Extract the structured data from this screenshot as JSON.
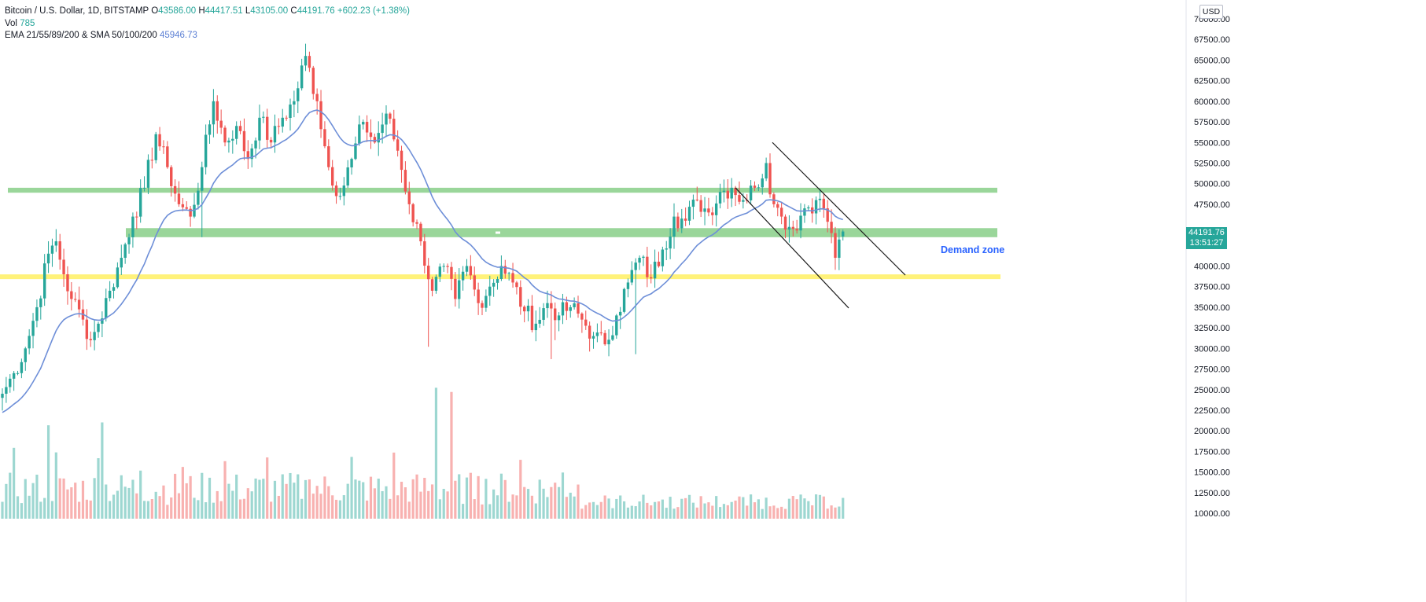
{
  "legend": {
    "symbol": "Bitcoin / U.S. Dollar, 1D, BITSTAMP",
    "open_label": "O",
    "open": "43586.00",
    "high_label": "H",
    "high": "44417.51",
    "low_label": "L",
    "low": "43105.00",
    "close_label": "C",
    "close": "44191.76",
    "change": "+602.23 (+1.38%)",
    "vol_label": "Vol",
    "vol": "785",
    "ema_label": "EMA 21/55/89/200 & SMA 50/100/200",
    "ema": "45946.73"
  },
  "axis": {
    "currency": "USD",
    "price_ticks": [
      "70000.00",
      "67500.00",
      "65000.00",
      "62500.00",
      "60000.00",
      "57500.00",
      "55000.00",
      "52500.00",
      "50000.00",
      "47500.00",
      "45000.00",
      "42500.00",
      "40000.00",
      "37500.00",
      "35000.00",
      "32500.00",
      "30000.00",
      "27500.00",
      "25000.00",
      "22500.00",
      "20000.00",
      "17500.00",
      "15000.00",
      "12500.00",
      "10000.00"
    ],
    "tick_values": [
      70000,
      67500,
      65000,
      62500,
      60000,
      57500,
      55000,
      52500,
      50000,
      47500,
      45000,
      42500,
      40000,
      37500,
      35000,
      32500,
      30000,
      27500,
      25000,
      22500,
      20000,
      17500,
      15000,
      12500,
      10000
    ]
  },
  "last_price": {
    "price": "44191.76",
    "countdown": "13:51:27",
    "color": "#26a69a"
  },
  "annotation": {
    "text": "Demand zone",
    "color": "#2962ff"
  },
  "colors": {
    "up": "#26a69a",
    "down": "#ef5350",
    "ema": "#6e8fd8",
    "zone": "#8fd18f",
    "support": "#fff27a",
    "channel": "#1a1a1a"
  },
  "chart_data": {
    "type": "candlestick",
    "ylim": [
      10000,
      70000
    ],
    "zones": [
      {
        "low": 48900,
        "high": 49500
      },
      {
        "low": 43500,
        "high": 44600
      }
    ],
    "support_line": 38700,
    "channel_lines": [
      [
        [
          40,
          55000
        ],
        [
          72,
          38900
        ]
      ],
      [
        [
          37,
          49500
        ],
        [
          69,
          34900
        ]
      ]
    ],
    "anchors": [
      [
        0,
        24500
      ],
      [
        3,
        27000
      ],
      [
        6,
        30000
      ],
      [
        9,
        35000
      ],
      [
        12,
        41500
      ],
      [
        14,
        43000
      ],
      [
        16,
        39000
      ],
      [
        18,
        36000
      ],
      [
        21,
        33500
      ],
      [
        23,
        31000
      ],
      [
        25,
        33000
      ],
      [
        28,
        37000
      ],
      [
        31,
        41000
      ],
      [
        34,
        46000
      ],
      [
        37,
        49500
      ],
      [
        40,
        56000
      ],
      [
        43,
        52000
      ],
      [
        46,
        47500
      ],
      [
        49,
        46000
      ],
      [
        52,
        52000
      ],
      [
        55,
        60000
      ],
      [
        58,
        55000
      ],
      [
        61,
        57000
      ],
      [
        64,
        53000
      ],
      [
        67,
        58000
      ],
      [
        70,
        55000
      ],
      [
        73,
        58000
      ],
      [
        76,
        60000
      ],
      [
        79,
        65500
      ],
      [
        82,
        60000
      ],
      [
        85,
        52000
      ],
      [
        88,
        48500
      ],
      [
        91,
        53000
      ],
      [
        94,
        57500
      ],
      [
        97,
        55000
      ],
      [
        100,
        58500
      ],
      [
        103,
        54000
      ],
      [
        106,
        47500
      ],
      [
        109,
        43000
      ],
      [
        112,
        37000
      ],
      [
        115,
        40000
      ],
      [
        118,
        36000
      ],
      [
        121,
        40000
      ],
      [
        124,
        35500
      ],
      [
        127,
        37500
      ],
      [
        130,
        40000
      ],
      [
        133,
        38000
      ],
      [
        136,
        34500
      ],
      [
        139,
        33000
      ],
      [
        142,
        35500
      ],
      [
        145,
        34000
      ],
      [
        148,
        35000
      ],
      [
        151,
        33500
      ],
      [
        154,
        31500
      ],
      [
        157,
        30500
      ],
      [
        160,
        34000
      ],
      [
        163,
        38000
      ],
      [
        166,
        41000
      ],
      [
        169,
        38500
      ],
      [
        172,
        42000
      ],
      [
        175,
        46000
      ],
      [
        178,
        45500
      ],
      [
        181,
        48000
      ],
      [
        184,
        46500
      ],
      [
        187,
        49000
      ],
      [
        190,
        49500
      ],
      [
        193,
        48000
      ],
      [
        196,
        49500
      ],
      [
        199,
        52500
      ],
      [
        201,
        47500
      ],
      [
        203,
        46000
      ],
      [
        206,
        44500
      ],
      [
        209,
        47000
      ],
      [
        212,
        48000
      ],
      [
        214,
        47000
      ],
      [
        216,
        44000
      ],
      [
        217,
        41000
      ],
      [
        219,
        44191
      ]
    ],
    "count": 220,
    "last": {
      "open": 43586.0,
      "high": 44417.51,
      "low": 43105.0,
      "close": 44191.76
    }
  }
}
